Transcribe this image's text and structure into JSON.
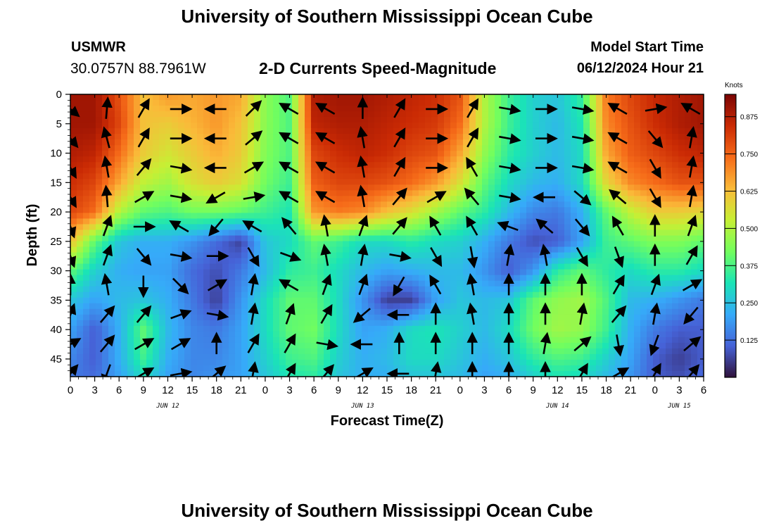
{
  "header": {
    "title": "University of Southern Mississippi Ocean Cube",
    "station_id": "USMWR",
    "station_coords": "30.0757N  88.7961W",
    "chart_title": "2-D Currents Speed-Magnitude",
    "model_start_label": "Model Start Time",
    "model_start_value": "06/12/2024 Hour 21"
  },
  "footer": {
    "title": "University of Southern Mississippi Ocean Cube"
  },
  "chart_data": {
    "type": "heatmap",
    "title": "2-D Currents Speed-Magnitude",
    "xlabel": "Forecast Time(Z)",
    "ylabel": "Depth (ft)",
    "x_unit": "forecast hour since 2024-06-12 00Z",
    "xlim": [
      0,
      78
    ],
    "ylim": [
      0,
      48
    ],
    "y_inverted": true,
    "x_tick_labels": [
      "0",
      "3",
      "6",
      "9",
      "12",
      "15",
      "18",
      "21",
      "0",
      "3",
      "6",
      "9",
      "12",
      "15",
      "18",
      "21",
      "0",
      "3",
      "6",
      "9",
      "12",
      "15",
      "18",
      "21",
      "0",
      "3",
      "6"
    ],
    "y_ticks": [
      0,
      5,
      10,
      15,
      20,
      25,
      30,
      35,
      40,
      45
    ],
    "date_labels": [
      {
        "text": "JUN 12",
        "hour": 12
      },
      {
        "text": "JUN 13",
        "hour": 36
      },
      {
        "text": "JUN 14",
        "hour": 60
      },
      {
        "text": "JUN 15",
        "hour": 75
      }
    ],
    "colorbar": {
      "unit": "Knots",
      "min": 0.0,
      "max": 0.95,
      "ticks": [
        "0.125",
        "0.250",
        "0.375",
        "0.500",
        "0.625",
        "0.750",
        "0.875"
      ],
      "colormap": [
        "#30123b",
        "#4662d7",
        "#36aaf9",
        "#1ae4b6",
        "#72fe5e",
        "#c7ef34",
        "#faba39",
        "#f66b19",
        "#ca2a04",
        "#7a0403"
      ]
    },
    "speed_grid": {
      "hours": [
        0,
        3,
        6,
        9,
        12,
        15,
        18,
        21,
        24,
        27,
        30,
        33,
        36,
        39,
        42,
        45,
        48,
        51,
        54,
        57,
        60,
        63,
        66,
        69,
        72,
        75,
        78
      ],
      "depths": [
        0,
        5,
        10,
        15,
        20,
        25,
        30,
        35,
        40,
        45,
        48
      ],
      "values": [
        [
          0.9,
          0.9,
          0.78,
          0.62,
          0.68,
          0.66,
          0.68,
          0.66,
          0.45,
          0.38,
          0.88,
          0.9,
          0.9,
          0.88,
          0.86,
          0.84,
          0.78,
          0.5,
          0.36,
          0.28,
          0.26,
          0.35,
          0.72,
          0.8,
          0.85,
          0.88,
          0.9
        ],
        [
          0.9,
          0.9,
          0.8,
          0.62,
          0.6,
          0.64,
          0.68,
          0.62,
          0.45,
          0.38,
          0.86,
          0.88,
          0.88,
          0.86,
          0.84,
          0.82,
          0.74,
          0.5,
          0.36,
          0.28,
          0.24,
          0.32,
          0.7,
          0.78,
          0.84,
          0.88,
          0.9
        ],
        [
          0.88,
          0.86,
          0.74,
          0.6,
          0.55,
          0.6,
          0.65,
          0.6,
          0.44,
          0.38,
          0.8,
          0.84,
          0.86,
          0.84,
          0.8,
          0.78,
          0.66,
          0.46,
          0.34,
          0.28,
          0.24,
          0.3,
          0.66,
          0.76,
          0.8,
          0.84,
          0.86
        ],
        [
          0.84,
          0.8,
          0.66,
          0.52,
          0.48,
          0.56,
          0.6,
          0.56,
          0.42,
          0.36,
          0.76,
          0.8,
          0.8,
          0.78,
          0.74,
          0.68,
          0.56,
          0.4,
          0.3,
          0.24,
          0.22,
          0.3,
          0.58,
          0.7,
          0.74,
          0.78,
          0.78
        ],
        [
          0.8,
          0.74,
          0.5,
          0.4,
          0.38,
          0.42,
          0.42,
          0.4,
          0.36,
          0.32,
          0.68,
          0.72,
          0.7,
          0.62,
          0.56,
          0.48,
          0.4,
          0.34,
          0.24,
          0.16,
          0.14,
          0.22,
          0.4,
          0.52,
          0.6,
          0.6,
          0.58
        ],
        [
          0.62,
          0.4,
          0.26,
          0.22,
          0.22,
          0.18,
          0.12,
          0.06,
          0.26,
          0.3,
          0.4,
          0.36,
          0.3,
          0.3,
          0.34,
          0.3,
          0.28,
          0.22,
          0.14,
          0.08,
          0.1,
          0.2,
          0.36,
          0.4,
          0.44,
          0.44,
          0.4
        ],
        [
          0.4,
          0.28,
          0.22,
          0.2,
          0.2,
          0.12,
          0.08,
          0.14,
          0.24,
          0.34,
          0.36,
          0.3,
          0.24,
          0.2,
          0.22,
          0.24,
          0.24,
          0.18,
          0.1,
          0.18,
          0.34,
          0.4,
          0.34,
          0.3,
          0.34,
          0.34,
          0.3
        ],
        [
          0.26,
          0.2,
          0.24,
          0.26,
          0.22,
          0.14,
          0.06,
          0.18,
          0.3,
          0.4,
          0.4,
          0.3,
          0.18,
          0.06,
          0.06,
          0.2,
          0.26,
          0.24,
          0.26,
          0.4,
          0.46,
          0.48,
          0.38,
          0.24,
          0.22,
          0.18,
          0.14
        ],
        [
          0.2,
          0.1,
          0.22,
          0.4,
          0.24,
          0.16,
          0.14,
          0.2,
          0.3,
          0.4,
          0.42,
          0.3,
          0.2,
          0.22,
          0.3,
          0.32,
          0.28,
          0.24,
          0.3,
          0.42,
          0.48,
          0.46,
          0.36,
          0.22,
          0.14,
          0.1,
          0.1
        ],
        [
          0.16,
          0.1,
          0.22,
          0.36,
          0.22,
          0.16,
          0.16,
          0.2,
          0.28,
          0.36,
          0.38,
          0.28,
          0.22,
          0.24,
          0.3,
          0.3,
          0.26,
          0.22,
          0.26,
          0.34,
          0.38,
          0.36,
          0.28,
          0.2,
          0.1,
          0.06,
          0.1
        ],
        [
          0.14,
          0.12,
          0.2,
          0.3,
          0.2,
          0.16,
          0.18,
          0.2,
          0.26,
          0.32,
          0.34,
          0.26,
          0.22,
          0.22,
          0.26,
          0.26,
          0.24,
          0.2,
          0.22,
          0.28,
          0.32,
          0.3,
          0.24,
          0.18,
          0.1,
          0.08,
          0.12
        ]
      ]
    },
    "arrow_grid": {
      "hours": [
        0,
        4.5,
        9,
        13.5,
        18,
        22.5,
        27,
        31.5,
        36,
        40.5,
        45,
        49.5,
        54,
        58.5,
        63,
        67.5,
        72,
        76.5
      ],
      "depths": [
        2.5,
        7.5,
        12.5,
        17.5,
        22.5,
        27.5,
        32.5,
        37.5,
        42.5,
        47.5
      ],
      "directions_deg": [
        [
          130,
          5,
          30,
          90,
          270,
          45,
          300,
          300,
          0,
          30,
          90,
          30,
          100,
          90,
          100,
          300,
          80,
          300
        ],
        [
          140,
          345,
          30,
          90,
          270,
          50,
          300,
          300,
          350,
          30,
          90,
          30,
          100,
          90,
          100,
          300,
          140,
          10
        ],
        [
          150,
          350,
          40,
          100,
          270,
          60,
          300,
          300,
          350,
          30,
          90,
          330,
          100,
          90,
          100,
          300,
          150,
          10
        ],
        [
          150,
          355,
          60,
          100,
          240,
          80,
          300,
          300,
          350,
          40,
          60,
          320,
          100,
          270,
          130,
          310,
          150,
          10
        ],
        [
          160,
          20,
          90,
          300,
          220,
          300,
          320,
          350,
          20,
          40,
          330,
          330,
          290,
          310,
          140,
          330,
          0,
          20
        ],
        [
          160,
          20,
          140,
          100,
          90,
          150,
          110,
          350,
          10,
          100,
          150,
          170,
          10,
          350,
          150,
          160,
          0,
          30
        ],
        [
          0,
          350,
          180,
          135,
          60,
          10,
          300,
          20,
          20,
          210,
          330,
          350,
          0,
          0,
          0,
          30,
          20,
          60
        ],
        [
          20,
          40,
          40,
          70,
          100,
          10,
          20,
          30,
          230,
          270,
          0,
          350,
          0,
          0,
          10,
          40,
          10,
          220
        ],
        [
          60,
          40,
          60,
          60,
          0,
          30,
          30,
          100,
          270,
          0,
          0,
          0,
          0,
          10,
          50,
          170,
          200,
          50
        ],
        [
          40,
          200,
          60,
          80,
          50,
          10,
          30,
          40,
          60,
          270,
          10,
          0,
          0,
          0,
          30,
          60,
          30,
          40
        ]
      ]
    }
  }
}
